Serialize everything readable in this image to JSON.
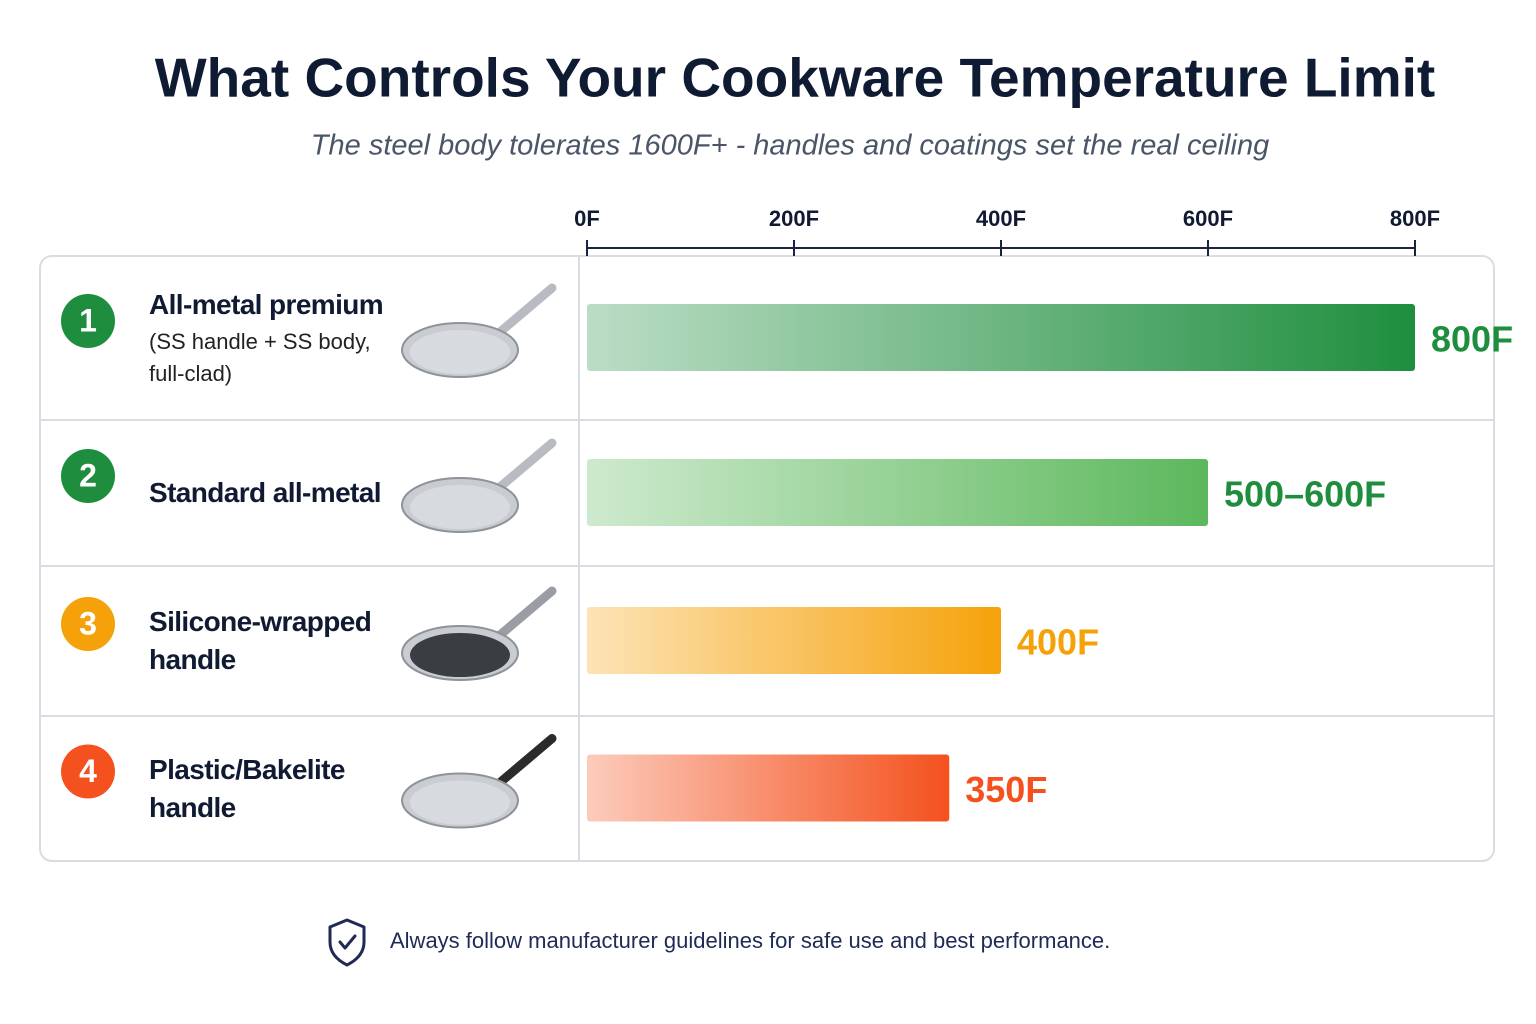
{
  "chart_data": {
    "type": "bar",
    "orientation": "horizontal",
    "title": "What Controls Your Cookware Temperature Limit",
    "subtitle": "The steel body tolerates 1600F+ - handles and coatings set the real ceiling",
    "ranks": [
      "1",
      "2",
      "3",
      "4"
    ],
    "categories": [
      "All-metal premium",
      "Standard all-metal",
      "Silicone-wrapped handle",
      "Plastic/Bakelite handle"
    ],
    "category_details": [
      "(SS handle + SS body, full-clad)",
      null,
      null,
      null
    ],
    "values": [
      800,
      600,
      400,
      350
    ],
    "value_labels": [
      "800F",
      "500–600F",
      "400F",
      "350F"
    ],
    "colors": [
      "#1e8e3e",
      "#1e8e3e",
      "#f5a20a",
      "#f4511e"
    ],
    "bar_colors": [
      "#1e8e3e",
      "#5cb85c",
      "#f5a20a",
      "#f4511e"
    ],
    "xlim": [
      0,
      800
    ],
    "xticks": [
      {
        "value": 0,
        "label": "0F"
      },
      {
        "value": 200,
        "label": "200F"
      },
      {
        "value": 400,
        "label": "400F"
      },
      {
        "value": 600,
        "label": "600F"
      },
      {
        "value": 800,
        "label": "800F"
      }
    ],
    "footnote": "Always follow manufacturer guidelines for safe use and best performance."
  }
}
